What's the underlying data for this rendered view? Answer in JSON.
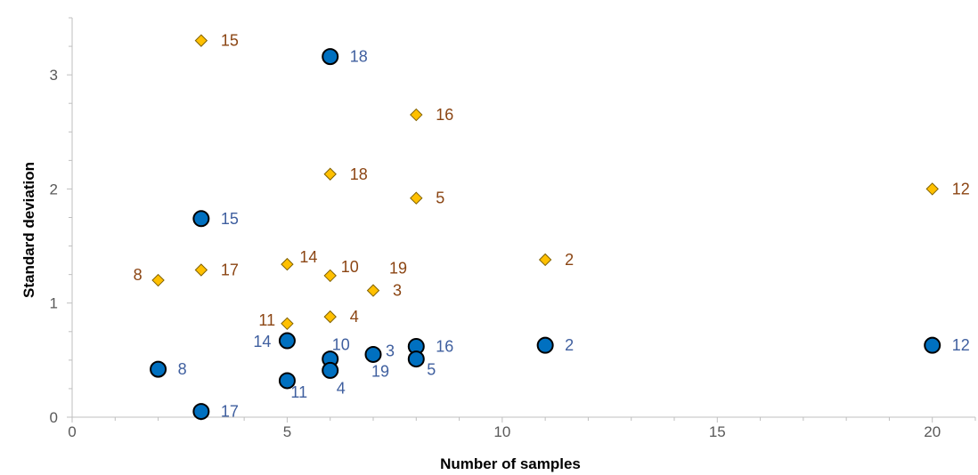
{
  "chart_data": {
    "type": "scatter",
    "title": "",
    "xlabel": "Number of samples",
    "ylabel": "Standard deviation",
    "xlim": [
      0,
      21
    ],
    "ylim": [
      0,
      3.5
    ],
    "x_ticks": [
      0,
      5,
      10,
      15,
      20
    ],
    "y_ticks": [
      0,
      1,
      2,
      3
    ],
    "grid": false,
    "legend": "none",
    "colors": {
      "circle_fill": "#0070C0",
      "circle_label": "#3F5F9F",
      "diamond_fill": "#FFC000",
      "diamond_stroke": "#7F6000",
      "diamond_label": "#8B4513",
      "axis": "#BFBFBF"
    },
    "series": [
      {
        "marker": "circle",
        "points": [
          {
            "label": "18",
            "x": 6,
            "y": 3.16
          },
          {
            "label": "15",
            "x": 3,
            "y": 1.74
          },
          {
            "label": "2",
            "x": 11,
            "y": 0.63
          },
          {
            "label": "12",
            "x": 20,
            "y": 0.63
          },
          {
            "label": "14",
            "x": 5,
            "y": 0.67
          },
          {
            "label": "16",
            "x": 8,
            "y": 0.62
          },
          {
            "label": "3",
            "x": 7,
            "y": 0.55
          },
          {
            "label": "10",
            "x": 6,
            "y": 0.51
          },
          {
            "label": "5",
            "x": 8,
            "y": 0.51
          },
          {
            "label": "8",
            "x": 2,
            "y": 0.42
          },
          {
            "label": "4",
            "x": 6,
            "y": 0.41
          },
          {
            "label": "19",
            "x": 7,
            "y": 0.55
          },
          {
            "label": "11",
            "x": 5,
            "y": 0.32
          },
          {
            "label": "17",
            "x": 3,
            "y": 0.05
          }
        ]
      },
      {
        "marker": "diamond",
        "points": [
          {
            "label": "15",
            "x": 3,
            "y": 3.3
          },
          {
            "label": "16",
            "x": 8,
            "y": 2.65
          },
          {
            "label": "18",
            "x": 6,
            "y": 2.13
          },
          {
            "label": "12",
            "x": 20,
            "y": 2.0
          },
          {
            "label": "5",
            "x": 8,
            "y": 1.92
          },
          {
            "label": "2",
            "x": 11,
            "y": 1.38
          },
          {
            "label": "14",
            "x": 5,
            "y": 1.34
          },
          {
            "label": "17",
            "x": 3,
            "y": 1.29
          },
          {
            "label": "10",
            "x": 6,
            "y": 1.24
          },
          {
            "label": "8",
            "x": 2,
            "y": 1.2
          },
          {
            "label": "3",
            "x": 7,
            "y": 1.11
          },
          {
            "label": "4",
            "x": 6,
            "y": 0.88
          },
          {
            "label": "11",
            "x": 5,
            "y": 0.82
          },
          {
            "label": "19",
            "x": 7,
            "y": 1.11
          }
        ]
      }
    ]
  }
}
